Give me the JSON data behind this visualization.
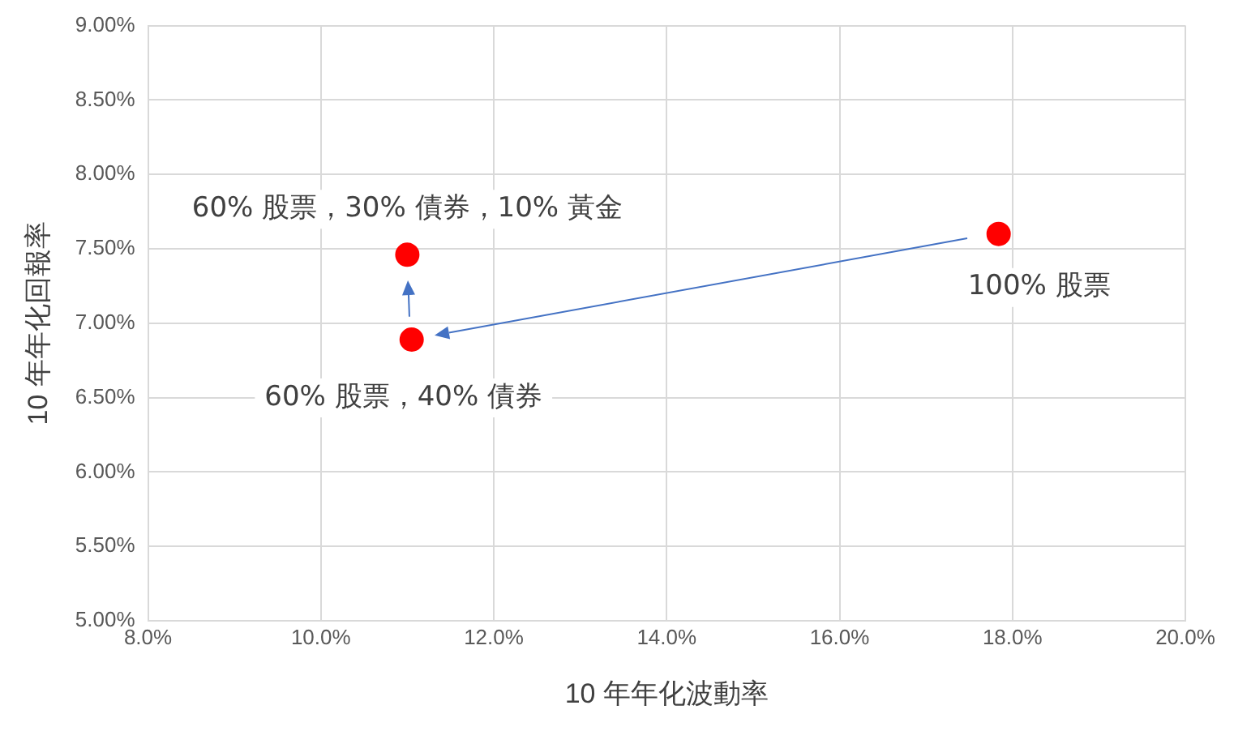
{
  "chart_data": {
    "type": "scatter",
    "xlabel": "10 年年化波動率",
    "ylabel": "10 年年化回報率",
    "x": [
      11.0,
      11.05,
      17.84
    ],
    "values": [
      7.46,
      6.89,
      7.6
    ],
    "color": "#ff0000",
    "marker": "circle",
    "grid": true,
    "legend": false,
    "xlim": [
      8,
      20
    ],
    "xticks": [
      {
        "value": 8,
        "label": "8.0%"
      },
      {
        "value": 10,
        "label": "10.0%"
      },
      {
        "value": 12,
        "label": "12.0%"
      },
      {
        "value": 14,
        "label": "14.0%"
      },
      {
        "value": 16,
        "label": "16.0%"
      },
      {
        "value": 18,
        "label": "18.0%"
      },
      {
        "value": 20,
        "label": "20.0%"
      }
    ],
    "ylim": [
      5,
      9
    ],
    "yticks": [
      {
        "value": 5,
        "label": "5.00%"
      },
      {
        "value": 5.5,
        "label": "5.50%"
      },
      {
        "value": 6,
        "label": "6.00%"
      },
      {
        "value": 6.5,
        "label": "6.50%"
      },
      {
        "value": 7,
        "label": "7.00%"
      },
      {
        "value": 7.5,
        "label": "7.50%"
      },
      {
        "value": 8,
        "label": "8.00%"
      },
      {
        "value": 8.5,
        "label": "8.50%"
      },
      {
        "value": 9,
        "label": "9.00%"
      }
    ],
    "annotations": [
      {
        "text": "60% 股票，30% 債券，10% 黃金",
        "x": 11.0,
        "y": 7.46
      },
      {
        "text": "60% 股票，40% 債券",
        "x": 11.05,
        "y": 6.89
      },
      {
        "text": "100% 股票",
        "x": 17.84,
        "y": 7.6
      }
    ]
  }
}
